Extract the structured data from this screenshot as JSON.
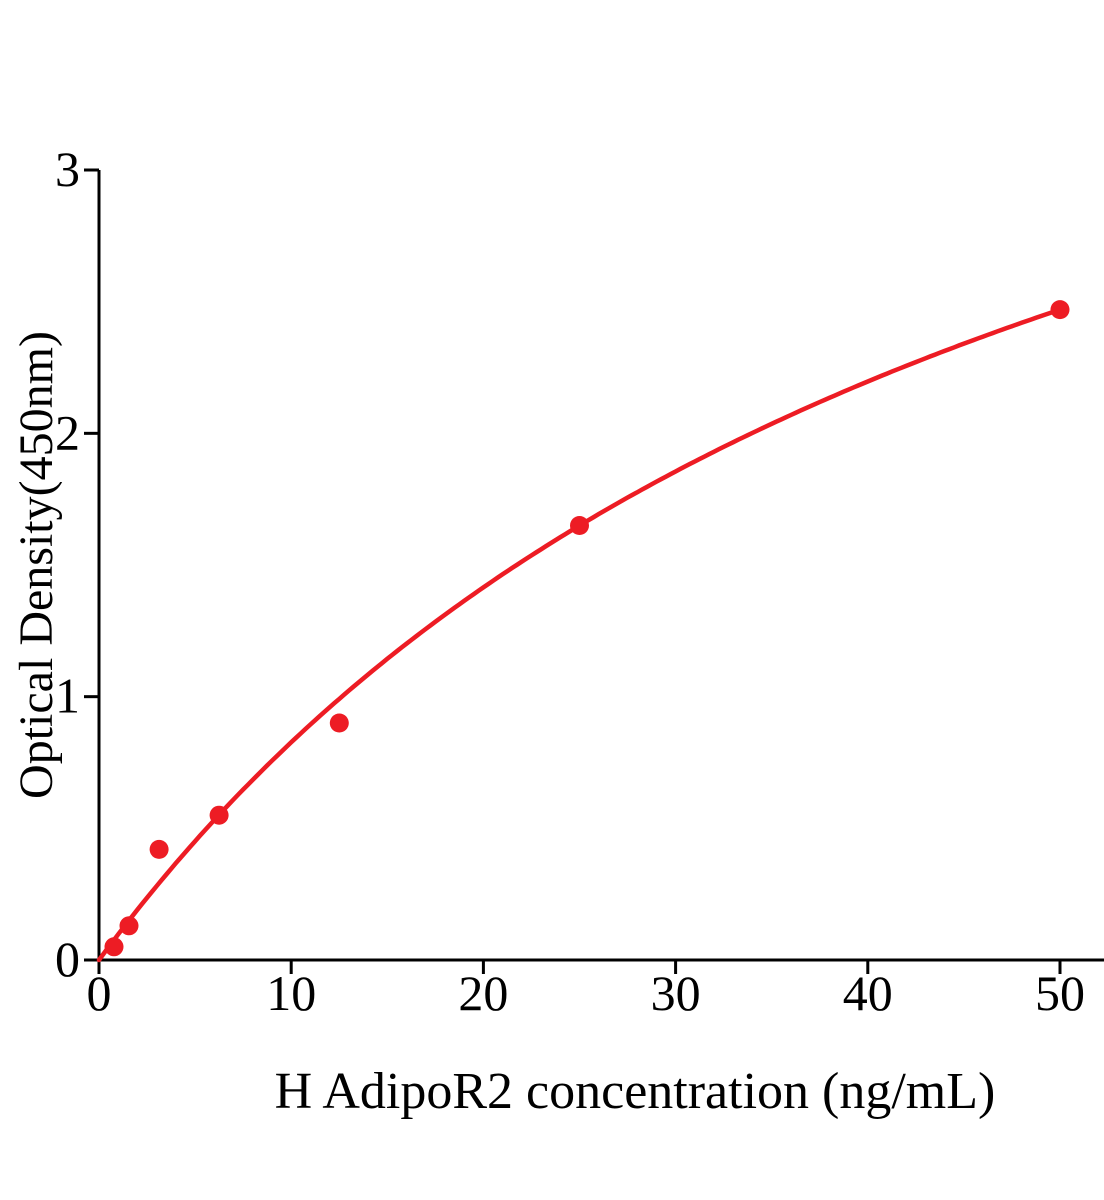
{
  "figure": {
    "background": "#ffffff"
  },
  "chart_data": {
    "type": "scatter",
    "xlabel": "H AdipoR2 concentration (ng/mL)",
    "ylabel": "Optical Density(450nm)",
    "x_ticks": [
      0,
      10,
      20,
      30,
      40,
      50
    ],
    "y_ticks": [
      0,
      1,
      2,
      3
    ],
    "xlim": [
      0,
      52.3
    ],
    "ylim": [
      0,
      3
    ],
    "grid": false,
    "legend": "none",
    "points": {
      "x": [
        0.78,
        1.56,
        3.125,
        6.25,
        12.5,
        25,
        50
      ],
      "y": [
        0.05,
        0.13,
        0.42,
        0.55,
        0.9,
        1.65,
        2.47
      ]
    },
    "trendline": {
      "model": "michaelis_menten",
      "formula": "y = Vmax*x/(Km+x)",
      "vmax": 4.91,
      "km": 49.4,
      "x_range": [
        0,
        50
      ]
    },
    "marker_color": "#ED1C24",
    "line_color": "#ED1C24",
    "axis_color": "#000000"
  }
}
